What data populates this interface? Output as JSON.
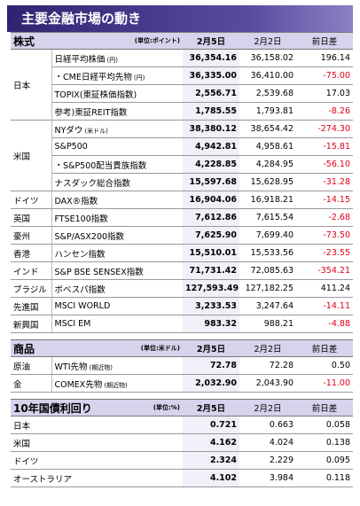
{
  "title": "主要金融市場の動き",
  "sections": [
    {
      "header": {
        "label": "株式",
        "unit": "(単位:ポイント)",
        "cur": "2月5日",
        "prev": "2月2日",
        "diff": "前日差"
      },
      "groups": [
        {
          "region": "日本",
          "rows": [
            {
              "name": "日経平均株価",
              "note": "(円)",
              "cur": "36,354.16",
              "prev": "36,158.02",
              "diff": "196.14"
            },
            {
              "name": "・CME日経平均先物",
              "note": "(円)",
              "cur": "36,335.00",
              "prev": "36,410.00",
              "diff": "-75.00"
            },
            {
              "name": "TOPIX(東証株価指数)",
              "cur": "2,556.71",
              "prev": "2,539.68",
              "diff": "17.03"
            },
            {
              "name": "参考)東証REIT指数",
              "cur": "1,785.55",
              "prev": "1,793.81",
              "diff": "-8.26"
            }
          ]
        },
        {
          "region": "米国",
          "rows": [
            {
              "name": "NYダウ",
              "note": "(米ドル)",
              "cur": "38,380.12",
              "prev": "38,654.42",
              "diff": "-274.30"
            },
            {
              "name": "S&P500",
              "cur": "4,942.81",
              "prev": "4,958.61",
              "diff": "-15.81"
            },
            {
              "name": "・S&P500配当貴族指数",
              "cur": "4,228.85",
              "prev": "4,284.95",
              "diff": "-56.10"
            },
            {
              "name": "ナスダック総合指数",
              "cur": "15,597.68",
              "prev": "15,628.95",
              "diff": "-31.28"
            }
          ]
        },
        {
          "region": "ドイツ",
          "rows": [
            {
              "name": "DAX®指数",
              "cur": "16,904.06",
              "prev": "16,918.21",
              "diff": "-14.15"
            }
          ]
        },
        {
          "region": "英国",
          "rows": [
            {
              "name": "FTSE100指数",
              "cur": "7,612.86",
              "prev": "7,615.54",
              "diff": "-2.68"
            }
          ]
        },
        {
          "region": "豪州",
          "rows": [
            {
              "name": "S&P/ASX200指数",
              "cur": "7,625.90",
              "prev": "7,699.40",
              "diff": "-73.50"
            }
          ]
        },
        {
          "region": "香港",
          "rows": [
            {
              "name": "ハンセン指数",
              "cur": "15,510.01",
              "prev": "15,533.56",
              "diff": "-23.55"
            }
          ]
        },
        {
          "region": "インド",
          "rows": [
            {
              "name": "S&P BSE SENSEX指数",
              "cur": "71,731.42",
              "prev": "72,085.63",
              "diff": "-354.21"
            }
          ]
        },
        {
          "region": "ブラジル",
          "rows": [
            {
              "name": "ボベスパ指数",
              "cur": "127,593.49",
              "prev": "127,182.25",
              "diff": "411.24"
            }
          ]
        },
        {
          "region": "先進国",
          "rows": [
            {
              "name": "MSCI WORLD",
              "cur": "3,233.53",
              "prev": "3,247.64",
              "diff": "-14.11"
            }
          ]
        },
        {
          "region": "新興国",
          "rows": [
            {
              "name": "MSCI EM",
              "cur": "983.32",
              "prev": "988.21",
              "diff": "-4.88"
            }
          ]
        }
      ]
    },
    {
      "header": {
        "label": "商品",
        "unit": "(単位:米ドル)",
        "cur": "2月5日",
        "prev": "2月2日",
        "diff": "前日差"
      },
      "groups": [
        {
          "region": "原油",
          "rows": [
            {
              "name": "WTI先物",
              "note": "(期近物)",
              "cur": "72.78",
              "prev": "72.28",
              "diff": "0.50"
            }
          ]
        },
        {
          "region": "金",
          "rows": [
            {
              "name": "COMEX先物",
              "note": "(期近物)",
              "cur": "2,032.90",
              "prev": "2,043.90",
              "diff": "-11.00"
            }
          ]
        }
      ]
    },
    {
      "header": {
        "label": "10年国債利回り",
        "unit": "(単位:%)",
        "cur": "2月5日",
        "prev": "2月2日",
        "diff": "前日差"
      },
      "groups": [
        {
          "region": "日本",
          "rows": [
            {
              "cur": "0.721",
              "prev": "0.663",
              "diff": "0.058"
            }
          ]
        },
        {
          "region": "米国",
          "rows": [
            {
              "cur": "4.162",
              "prev": "4.024",
              "diff": "0.138"
            }
          ]
        },
        {
          "region": "ドイツ",
          "rows": [
            {
              "cur": "2.324",
              "prev": "2.229",
              "diff": "0.095"
            }
          ]
        },
        {
          "region": "オーストラリア",
          "rows": [
            {
              "cur": "4.102",
              "prev": "3.984",
              "diff": "0.118"
            }
          ]
        }
      ]
    }
  ]
}
